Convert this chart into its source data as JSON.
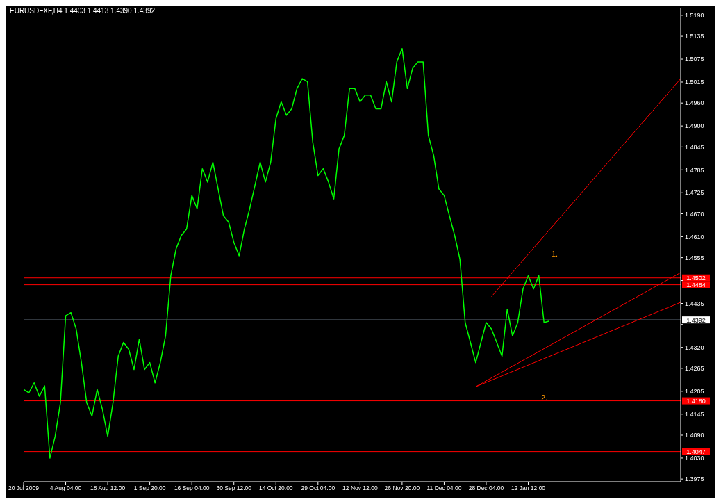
{
  "chart_data": {
    "type": "line",
    "title": "EURUSDFXF,H4 1.4403 1.4413 1.4390 1.4392",
    "categories": [
      "20 Jul 2009",
      null,
      null,
      null,
      null,
      null,
      null,
      null,
      "4 Aug 04:00",
      null,
      null,
      null,
      null,
      null,
      null,
      null,
      "18 Aug 12:00",
      null,
      null,
      null,
      null,
      null,
      null,
      null,
      "1 Sep 20:00",
      null,
      null,
      null,
      null,
      null,
      null,
      null,
      "16 Sep 04:00",
      null,
      null,
      null,
      null,
      null,
      null,
      null,
      "30 Sep 12:00",
      null,
      null,
      null,
      null,
      null,
      null,
      null,
      "14 Oct 20:00",
      null,
      null,
      null,
      null,
      null,
      null,
      null,
      "29 Oct 04:00",
      null,
      null,
      null,
      null,
      null,
      null,
      null,
      "12 Nov 12:00",
      null,
      null,
      null,
      null,
      null,
      null,
      null,
      "26 Nov 20:00",
      null,
      null,
      null,
      null,
      null,
      null,
      null,
      "11 Dec 04:00",
      null,
      null,
      null,
      null,
      null,
      null,
      null,
      "28 Dec 04:00",
      null,
      null,
      null,
      null,
      null,
      null,
      null,
      "12 Jan 12:00",
      null,
      null,
      null,
      null,
      null,
      null,
      null,
      null,
      null,
      null,
      null,
      null,
      null,
      null,
      null,
      null,
      null,
      null,
      null,
      null,
      null,
      null,
      null,
      null,
      null,
      null,
      null,
      null,
      null
    ],
    "series": [
      {
        "color": "#00ff00",
        "values": [
          1.421,
          1.4201,
          1.4227,
          1.4192,
          1.4219,
          1.403,
          1.4087,
          1.4175,
          1.4403,
          1.4411,
          1.4368,
          1.428,
          1.4175,
          1.414,
          1.421,
          1.4157,
          1.4087,
          1.4175,
          1.4297,
          1.4333,
          1.4315,
          1.4262,
          1.4341,
          1.4262,
          1.428,
          1.4227,
          1.428,
          1.435,
          1.4508,
          1.4578,
          1.4613,
          1.463,
          1.4718,
          1.4683,
          1.4788,
          1.4753,
          1.4805,
          1.4735,
          1.4665,
          1.4648,
          1.4595,
          1.456,
          1.463,
          1.4683,
          1.4744,
          1.4805,
          1.4753,
          1.4805,
          1.4919,
          1.4963,
          1.4928,
          1.4945,
          1.4998,
          1.5024,
          1.5016,
          1.4858,
          1.477,
          1.4788,
          1.4753,
          1.4709,
          1.484,
          1.4875,
          1.4998,
          1.4998,
          1.4963,
          1.4981,
          1.4981,
          1.4945,
          1.4945,
          1.5016,
          1.4963,
          1.5068,
          1.5103,
          1.4998,
          1.5051,
          1.5068,
          1.5068,
          1.4875,
          1.4823,
          1.4735,
          1.4718,
          1.4665,
          1.4613,
          1.4551,
          1.4385,
          1.4333,
          1.428,
          1.4333,
          1.4385,
          1.4368,
          1.4333,
          1.4297,
          1.442,
          1.435,
          1.4385,
          1.4473,
          1.4508,
          1.4473,
          1.4508,
          1.4385,
          1.4389,
          null,
          null,
          null,
          null,
          null,
          null,
          null,
          null,
          null,
          null,
          null,
          null,
          null,
          null,
          null,
          null,
          null,
          null,
          null,
          null,
          null,
          null,
          null,
          null,
          null
        ]
      },
      {
        "type": "line",
        "color": "#ff0000",
        "values": [
          null,
          null,
          null,
          null,
          null,
          null,
          null,
          null,
          null,
          null,
          null,
          null,
          null,
          null,
          null,
          null,
          null,
          null,
          null,
          null,
          null,
          null,
          null,
          null,
          null,
          null,
          null,
          null,
          null,
          null,
          null,
          null,
          null,
          null,
          null,
          null,
          null,
          null,
          null,
          null,
          null,
          null,
          null,
          null,
          null,
          null,
          null,
          null,
          null,
          null,
          null,
          null,
          null,
          null,
          null,
          null,
          null,
          null,
          null,
          null,
          null,
          null,
          null,
          null,
          null,
          null,
          null,
          null,
          null,
          null,
          null,
          null,
          null,
          null,
          null,
          null,
          null,
          null,
          null,
          null,
          null,
          null,
          null,
          null,
          null,
          null,
          null,
          null,
          null,
          1.4453,
          null,
          null,
          null,
          null,
          null,
          null,
          null,
          null,
          null,
          null,
          null,
          null,
          null,
          null,
          null,
          null,
          null,
          null,
          null,
          null,
          null,
          null,
          null,
          null,
          null,
          null,
          null,
          null,
          null,
          null,
          null,
          null,
          null,
          null,
          null,
          1.5024
        ]
      },
      {
        "type": "line",
        "color": "#ff0000",
        "values": [
          null,
          null,
          null,
          null,
          null,
          null,
          null,
          null,
          null,
          null,
          null,
          null,
          null,
          null,
          null,
          null,
          null,
          null,
          null,
          null,
          null,
          null,
          null,
          null,
          null,
          null,
          null,
          null,
          null,
          null,
          null,
          null,
          null,
          null,
          null,
          null,
          null,
          null,
          null,
          null,
          null,
          null,
          null,
          null,
          null,
          null,
          null,
          null,
          null,
          null,
          null,
          null,
          null,
          null,
          null,
          null,
          null,
          null,
          null,
          null,
          null,
          null,
          null,
          null,
          null,
          null,
          null,
          null,
          null,
          null,
          null,
          null,
          null,
          null,
          null,
          null,
          null,
          null,
          null,
          null,
          null,
          null,
          null,
          null,
          null,
          null,
          1.4217,
          null,
          null,
          null,
          null,
          null,
          null,
          null,
          null,
          null,
          null,
          null,
          null,
          null,
          null,
          null,
          null,
          null,
          null,
          null,
          null,
          null,
          null,
          null,
          null,
          null,
          null,
          null,
          null,
          null,
          null,
          null,
          null,
          null,
          null,
          null,
          null,
          null,
          null,
          1.4516
        ]
      },
      {
        "type": "line",
        "color": "#ff0000",
        "values": [
          null,
          null,
          null,
          null,
          null,
          null,
          null,
          null,
          null,
          null,
          null,
          null,
          null,
          null,
          null,
          null,
          null,
          null,
          null,
          null,
          null,
          null,
          null,
          null,
          null,
          null,
          null,
          null,
          null,
          null,
          null,
          null,
          null,
          null,
          null,
          null,
          null,
          null,
          null,
          null,
          null,
          null,
          null,
          null,
          null,
          null,
          null,
          null,
          null,
          null,
          null,
          null,
          null,
          null,
          null,
          null,
          null,
          null,
          null,
          null,
          null,
          null,
          null,
          null,
          null,
          null,
          null,
          null,
          null,
          null,
          null,
          null,
          null,
          null,
          null,
          null,
          null,
          null,
          null,
          null,
          null,
          null,
          null,
          null,
          null,
          null,
          1.4217,
          null,
          null,
          null,
          null,
          null,
          null,
          null,
          null,
          null,
          null,
          null,
          null,
          null,
          null,
          null,
          null,
          null,
          null,
          null,
          null,
          null,
          null,
          null,
          null,
          null,
          null,
          null,
          null,
          null,
          null,
          null,
          null,
          null,
          null,
          null,
          null,
          null,
          null,
          1.4438
        ]
      }
    ],
    "ylim": [
      1.3968,
      1.5208
    ],
    "yticks": [
      {
        "value": 1.3975,
        "label": "1.3975"
      },
      {
        "value": 1.403,
        "label": "1.4030"
      },
      {
        "value": 1.409,
        "label": "1.4090"
      },
      {
        "value": 1.4145,
        "label": "1.4145"
      },
      {
        "value": 1.4205,
        "label": "1.4205"
      },
      {
        "value": 1.4265,
        "label": "1.4265"
      },
      {
        "value": 1.432,
        "label": "1.4320"
      },
      {
        "value": 1.438,
        "label": null
      },
      {
        "value": 1.4435,
        "label": "1.4435"
      },
      {
        "value": 1.4495,
        "label": null
      },
      {
        "value": 1.4555,
        "label": "1.4555"
      },
      {
        "value": 1.461,
        "label": "1.4610"
      },
      {
        "value": 1.467,
        "label": "1.4670"
      },
      {
        "value": 1.4725,
        "label": "1.4725"
      },
      {
        "value": 1.4785,
        "label": "1.4785"
      },
      {
        "value": 1.4845,
        "label": "1.4845"
      },
      {
        "value": 1.49,
        "label": "1.4900"
      },
      {
        "value": 1.496,
        "label": "1.4960"
      },
      {
        "value": 1.5015,
        "label": "1.5015"
      },
      {
        "value": 1.5075,
        "label": "1.5075"
      },
      {
        "value": 1.5135,
        "label": "1.5135"
      },
      {
        "value": 1.519,
        "label": "1.5190"
      }
    ],
    "ref_lines": [
      {
        "axis": "y",
        "value": 1.4502,
        "label": "1.4502",
        "color": "#ff0000"
      },
      {
        "axis": "y",
        "value": 1.4484,
        "label": "1.4484",
        "color": "#ff0000"
      },
      {
        "axis": "y",
        "value": 1.4392,
        "label": "1.4392",
        "color": "#8899aa"
      },
      {
        "axis": "y",
        "value": 1.418,
        "label": "1.4180",
        "color": "#ff0000"
      },
      {
        "axis": "y",
        "value": 1.4047,
        "label": "1.4047",
        "color": "#ff0000"
      }
    ],
    "annotations": [
      "1.",
      "2."
    ],
    "grid": false,
    "legend": false
  }
}
